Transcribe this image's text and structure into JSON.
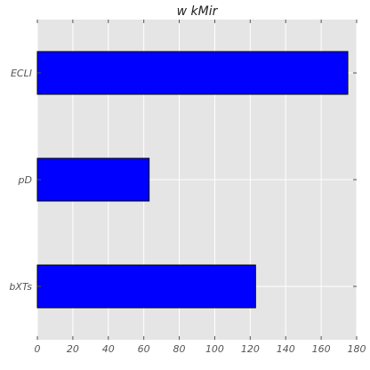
{
  "chart_data": {
    "type": "bar",
    "orientation": "horizontal",
    "title": "w kMir",
    "xlabel": "",
    "ylabel": "",
    "categories": [
      "ECLI",
      "pD",
      "bXTs"
    ],
    "values": [
      175,
      63,
      123
    ],
    "xlim": [
      0,
      180
    ],
    "xticks": [
      "0",
      "20",
      "40",
      "60",
      "80",
      "100",
      "120",
      "140",
      "160",
      "180"
    ],
    "grid": true,
    "bar_color": "#0000ff",
    "edge_color": "#000000",
    "background_color": "#e5e5e5",
    "grid_color": "#ffffff"
  }
}
